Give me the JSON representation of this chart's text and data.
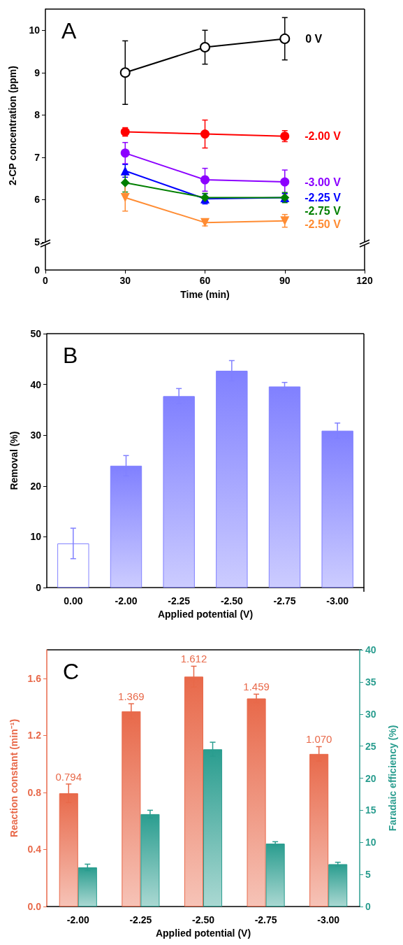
{
  "chart_data": [
    {
      "type": "line",
      "title": "A",
      "xlabel": "Time (min)",
      "ylabel": "2-CP concentration (ppm)",
      "annotations": [
        "0"
      ],
      "xlim": [
        0,
        120
      ],
      "xticks": [
        0,
        30,
        60,
        90,
        120
      ],
      "ylim": [
        5,
        10.5
      ],
      "yticks": [
        5,
        6,
        7,
        8,
        9,
        10
      ],
      "x": [
        30,
        60,
        90
      ],
      "grid": false,
      "legend": false,
      "series": [
        {
          "name": "0 V",
          "color": "#000000",
          "marker": "open_circle",
          "values": [
            9.0,
            9.6,
            9.8
          ],
          "errors": [
            0.75,
            0.4,
            0.5
          ]
        },
        {
          "name": "-2.00 V",
          "color": "#ff0000",
          "marker": "circle",
          "values": [
            7.6,
            7.55,
            7.5
          ],
          "errors": [
            0.1,
            0.33,
            0.13
          ]
        },
        {
          "name": "-3.00 V",
          "color": "#8b00ff",
          "marker": "circle",
          "values": [
            7.1,
            6.47,
            6.42
          ],
          "errors": [
            0.25,
            0.27,
            0.28
          ]
        },
        {
          "name": "-2.25 V",
          "color": "#0000ff",
          "marker": "triangle",
          "values": [
            6.68,
            6.02,
            6.05
          ],
          "errors": [
            0.15,
            0.12,
            0.1
          ]
        },
        {
          "name": "-2.75 V",
          "color": "#007f00",
          "marker": "diamond",
          "values": [
            6.4,
            6.05,
            6.05
          ],
          "errors": [
            0.22,
            0.1,
            0.12
          ]
        },
        {
          "name": "-2.50 V",
          "color": "#ff8c33",
          "marker": "triangle_down",
          "values": [
            6.05,
            5.46,
            5.5
          ],
          "errors": [
            0.32,
            0.08,
            0.15
          ]
        }
      ]
    },
    {
      "type": "bar",
      "title": "B",
      "xlabel": "Applied potential (V)",
      "ylabel": "Removal (%)",
      "categories": [
        "0.00",
        "-2.00",
        "-2.25",
        "-2.50",
        "-2.75",
        "-3.00"
      ],
      "ylim": [
        0,
        50
      ],
      "yticks": [
        0,
        10,
        20,
        30,
        40,
        50
      ],
      "grid": false,
      "legend": false,
      "series": [
        {
          "color": "#8080ff",
          "colors": [
            "#ffffff",
            "#8080ff",
            "#8080ff",
            "#8080ff",
            "#8080ff",
            "#8080ff"
          ],
          "values": [
            8.7,
            24.0,
            37.7,
            42.7,
            39.6,
            30.9
          ],
          "errors": [
            3.0,
            2.0,
            1.5,
            2.0,
            0.8,
            1.5
          ]
        }
      ]
    },
    {
      "type": "bar",
      "title": "C",
      "xlabel": "Applied potential (V)",
      "ylabel": "Reaction constant (min⁻¹)",
      "y2label": "Faradaic efficiency (%)",
      "categories": [
        "-2.00",
        "-2.25",
        "-2.50",
        "-2.75",
        "-3.00"
      ],
      "ylim": [
        0,
        1.8
      ],
      "yticks": [
        {
          "value": 0,
          "label": "0.0"
        },
        {
          "value": 0.4,
          "label": "0.4"
        },
        {
          "value": 0.8,
          "label": "0.8"
        },
        {
          "value": 1.2,
          "label": "1.2"
        },
        {
          "value": 1.6,
          "label": "1.6"
        }
      ],
      "y2lim": [
        0,
        40
      ],
      "y2ticks": [
        0,
        5,
        10,
        15,
        20,
        25,
        30,
        35,
        40
      ],
      "grid": false,
      "legend": false,
      "series": [
        {
          "color": "#e8694a",
          "values": [
            0.794,
            1.369,
            1.612,
            1.459,
            1.07
          ],
          "value_labels": [
            "0.794",
            "1.369",
            "1.612",
            "1.459",
            "1.070"
          ],
          "errors": [
            0.065,
            0.053,
            0.073,
            0.03,
            0.051
          ]
        },
        {
          "color": "#2a9d8f",
          "axis": "y2",
          "values": [
            6.1,
            14.4,
            24.5,
            9.8,
            6.6
          ],
          "errors": [
            0.5,
            0.6,
            1.1,
            0.3,
            0.3
          ]
        }
      ]
    }
  ]
}
